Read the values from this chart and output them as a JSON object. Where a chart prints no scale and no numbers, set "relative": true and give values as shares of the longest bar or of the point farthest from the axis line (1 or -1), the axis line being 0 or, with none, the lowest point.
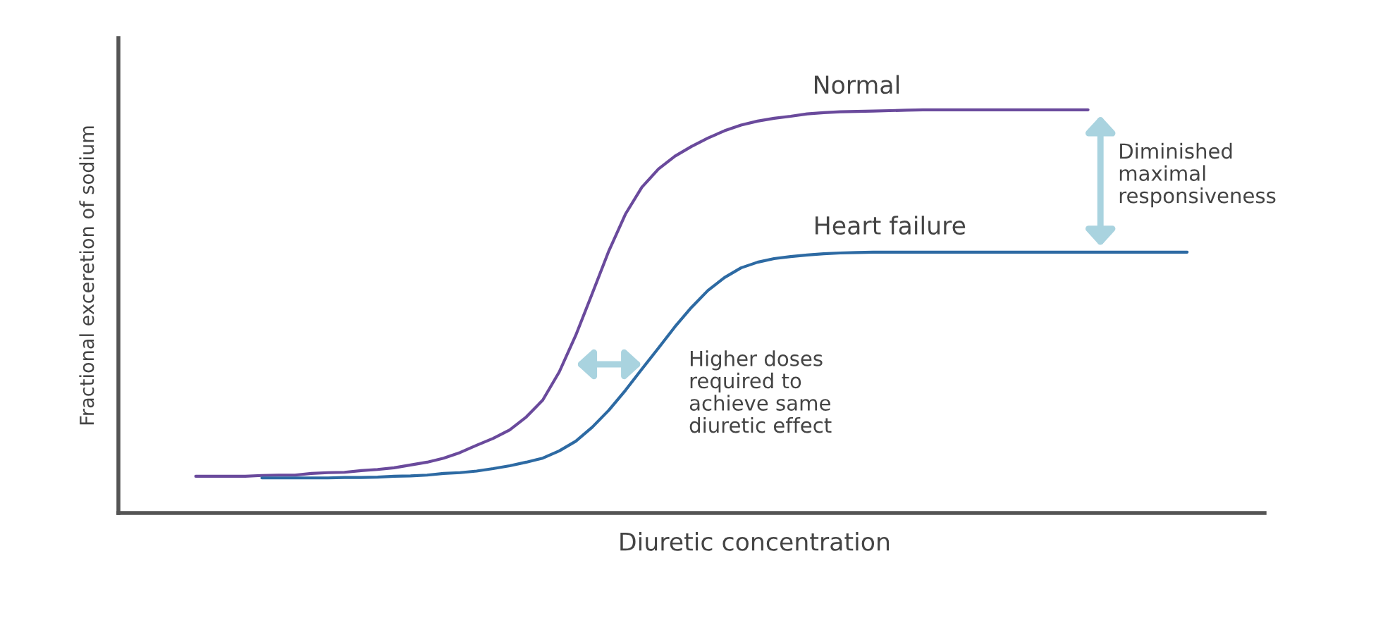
{
  "chart_data": {
    "type": "line",
    "relative": true,
    "xlabel": "Diuretic concentration",
    "ylabel": "Fractional exceretion of sodium",
    "categories": [
      null,
      null,
      null,
      null,
      null,
      null,
      null,
      null,
      null,
      null,
      null,
      null,
      null,
      null,
      null,
      null,
      null,
      null,
      null,
      null,
      null,
      null,
      null,
      null,
      null,
      null,
      null,
      null,
      null,
      null,
      null,
      null,
      null,
      null,
      null,
      null,
      null,
      null,
      null,
      null,
      null,
      null,
      null,
      null,
      null,
      null,
      null,
      null,
      null,
      null,
      null,
      null,
      null,
      null,
      null,
      null,
      null,
      null,
      null,
      null,
      null
    ],
    "series": [
      {
        "name": "Normal",
        "color": "#6a4a9c",
        "values": [
          0.091,
          0.091,
          0.091,
          0.091,
          0.093,
          0.094,
          0.094,
          0.098,
          0.1,
          0.101,
          0.105,
          0.108,
          0.112,
          0.119,
          0.126,
          0.136,
          0.15,
          0.168,
          0.185,
          0.206,
          0.238,
          0.28,
          0.35,
          0.441,
          0.545,
          0.65,
          0.741,
          0.808,
          0.853,
          0.885,
          0.909,
          0.93,
          0.948,
          0.962,
          0.972,
          0.979,
          0.984,
          0.99,
          0.993,
          0.995,
          0.996,
          0.997,
          0.998,
          0.999,
          1.0,
          1.0,
          1.0,
          1.0,
          1.0,
          1.0,
          1.0,
          1.0,
          1.0,
          1.0,
          1.0,
          null,
          null,
          null,
          null,
          null,
          null
        ]
      },
      {
        "name": "Heart failure",
        "color": "#2d6aa3",
        "values": [
          null,
          null,
          null,
          null,
          0.087,
          0.087,
          0.087,
          0.087,
          0.087,
          0.088,
          0.088,
          0.089,
          0.091,
          0.092,
          0.094,
          0.098,
          0.1,
          0.104,
          0.11,
          0.117,
          0.126,
          0.136,
          0.154,
          0.178,
          0.213,
          0.255,
          0.304,
          0.357,
          0.409,
          0.462,
          0.51,
          0.552,
          0.584,
          0.608,
          0.622,
          0.631,
          0.636,
          0.64,
          0.643,
          0.645,
          0.646,
          0.647,
          0.647,
          0.647,
          0.647,
          0.647,
          0.647,
          0.647,
          0.647,
          0.647,
          0.647,
          0.647,
          0.647,
          0.647,
          0.647,
          0.647,
          0.647,
          0.647,
          0.647,
          0.647,
          0.647
        ]
      }
    ],
    "annotations": [
      "Diminished\nmaximal\nresponsiveness",
      "Higher doses\nrequired to\nachieve same\ndiuretic effect"
    ]
  }
}
